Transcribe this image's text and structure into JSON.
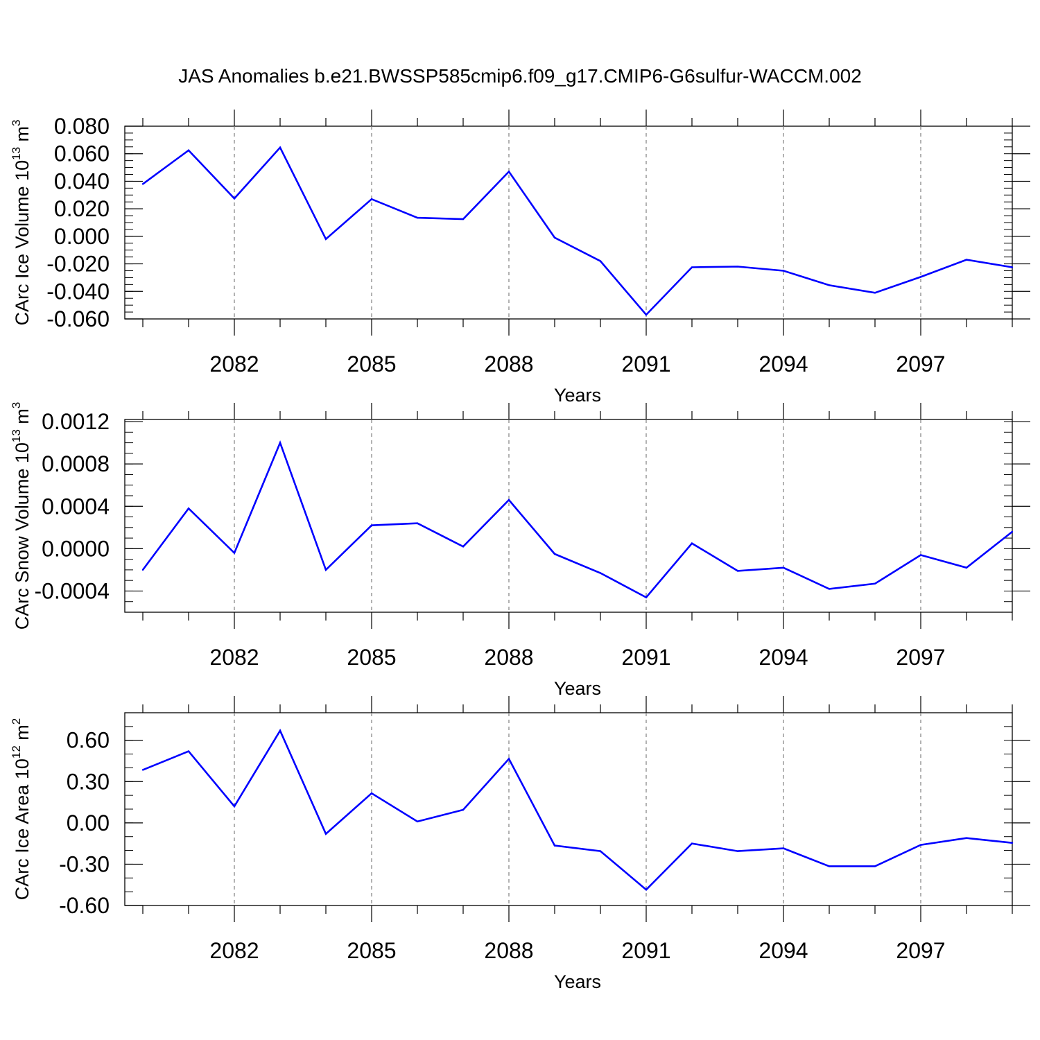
{
  "title": "JAS Anomalies b.e21.BWSSP585cmip6.f09_g17.CMIP6-G6sulfur-WACCM.002",
  "line_color": "#0000ff",
  "grid_color": "#808080",
  "chart_data": [
    {
      "type": "line",
      "ylabel": "CArc Ice Volume 10",
      "ylabel_exp": "13",
      "ylabel_unit": " m",
      "ylabel_unit_exp": "3",
      "xlabel": "Years",
      "xlim": [
        2080,
        2099
      ],
      "ylim": [
        -0.06,
        0.08
      ],
      "xticks": [
        2082,
        2085,
        2088,
        2091,
        2094,
        2097
      ],
      "yticks": [
        {
          "v": 0.08,
          "label": "0.080"
        },
        {
          "v": 0.06,
          "label": "0.060"
        },
        {
          "v": 0.04,
          "label": "0.040"
        },
        {
          "v": 0.02,
          "label": "0.020"
        },
        {
          "v": 0.0,
          "label": "0.000"
        },
        {
          "v": -0.02,
          "label": "-0.020"
        },
        {
          "v": -0.04,
          "label": "-0.040"
        },
        {
          "v": -0.06,
          "label": "-0.060"
        }
      ],
      "yminor": 0.005,
      "grid": "vertical dashed at labeled years",
      "x": [
        2080,
        2081,
        2082,
        2083,
        2084,
        2085,
        2086,
        2087,
        2088,
        2089,
        2090,
        2091,
        2092,
        2093,
        2094,
        2095,
        2096,
        2097,
        2098,
        2099
      ],
      "values": [
        0.038,
        0.0625,
        0.0275,
        0.0645,
        -0.002,
        0.027,
        0.0135,
        0.0125,
        0.047,
        -0.001,
        -0.018,
        -0.057,
        -0.0225,
        -0.022,
        -0.025,
        -0.0355,
        -0.041,
        -0.0295,
        -0.017,
        -0.0225
      ]
    },
    {
      "type": "line",
      "ylabel": "CArc Snow Volume 10",
      "ylabel_exp": "13",
      "ylabel_unit": " m",
      "ylabel_unit_exp": "3",
      "xlabel": "Years",
      "xlim": [
        2080,
        2099
      ],
      "ylim": [
        -0.0006,
        0.00122
      ],
      "xticks": [
        2082,
        2085,
        2088,
        2091,
        2094,
        2097
      ],
      "yticks": [
        {
          "v": 0.0012,
          "label": "0.0012"
        },
        {
          "v": 0.0008,
          "label": "0.0008"
        },
        {
          "v": 0.0004,
          "label": "0.0004"
        },
        {
          "v": 0.0,
          "label": "0.0000"
        },
        {
          "v": -0.0004,
          "label": "-0.0004"
        }
      ],
      "yminor": 0.0001,
      "grid": "vertical dashed at labeled years",
      "x": [
        2080,
        2081,
        2082,
        2083,
        2084,
        2085,
        2086,
        2087,
        2088,
        2089,
        2090,
        2091,
        2092,
        2093,
        2094,
        2095,
        2096,
        2097,
        2098,
        2099
      ],
      "values": [
        -0.0002,
        0.00038,
        -4e-05,
        0.001,
        -0.0002,
        0.00022,
        0.00024,
        2e-05,
        0.00046,
        -5e-05,
        -0.00023,
        -0.00046,
        5e-05,
        -0.00021,
        -0.00018,
        -0.00038,
        -0.00033,
        -6e-05,
        -0.00018,
        0.00016
      ]
    },
    {
      "type": "line",
      "ylabel": "CArc Ice Area 10",
      "ylabel_exp": "12",
      "ylabel_unit": " m",
      "ylabel_unit_exp": "2",
      "xlabel": "Years",
      "xlim": [
        2080,
        2099
      ],
      "ylim": [
        -0.6,
        0.8
      ],
      "xticks": [
        2082,
        2085,
        2088,
        2091,
        2094,
        2097
      ],
      "yticks": [
        {
          "v": 0.6,
          "label": "0.60"
        },
        {
          "v": 0.3,
          "label": "0.30"
        },
        {
          "v": 0.0,
          "label": "0.00"
        },
        {
          "v": -0.3,
          "label": "-0.30"
        },
        {
          "v": -0.6,
          "label": "-0.60"
        }
      ],
      "yminor": 0.1,
      "grid": "vertical dashed at labeled years",
      "x": [
        2080,
        2081,
        2082,
        2083,
        2084,
        2085,
        2086,
        2087,
        2088,
        2089,
        2090,
        2091,
        2092,
        2093,
        2094,
        2095,
        2096,
        2097,
        2098,
        2099
      ],
      "values": [
        0.385,
        0.52,
        0.12,
        0.67,
        -0.08,
        0.215,
        0.01,
        0.095,
        0.465,
        -0.165,
        -0.205,
        -0.485,
        -0.15,
        -0.205,
        -0.185,
        -0.315,
        -0.315,
        -0.16,
        -0.11,
        -0.145
      ]
    }
  ]
}
